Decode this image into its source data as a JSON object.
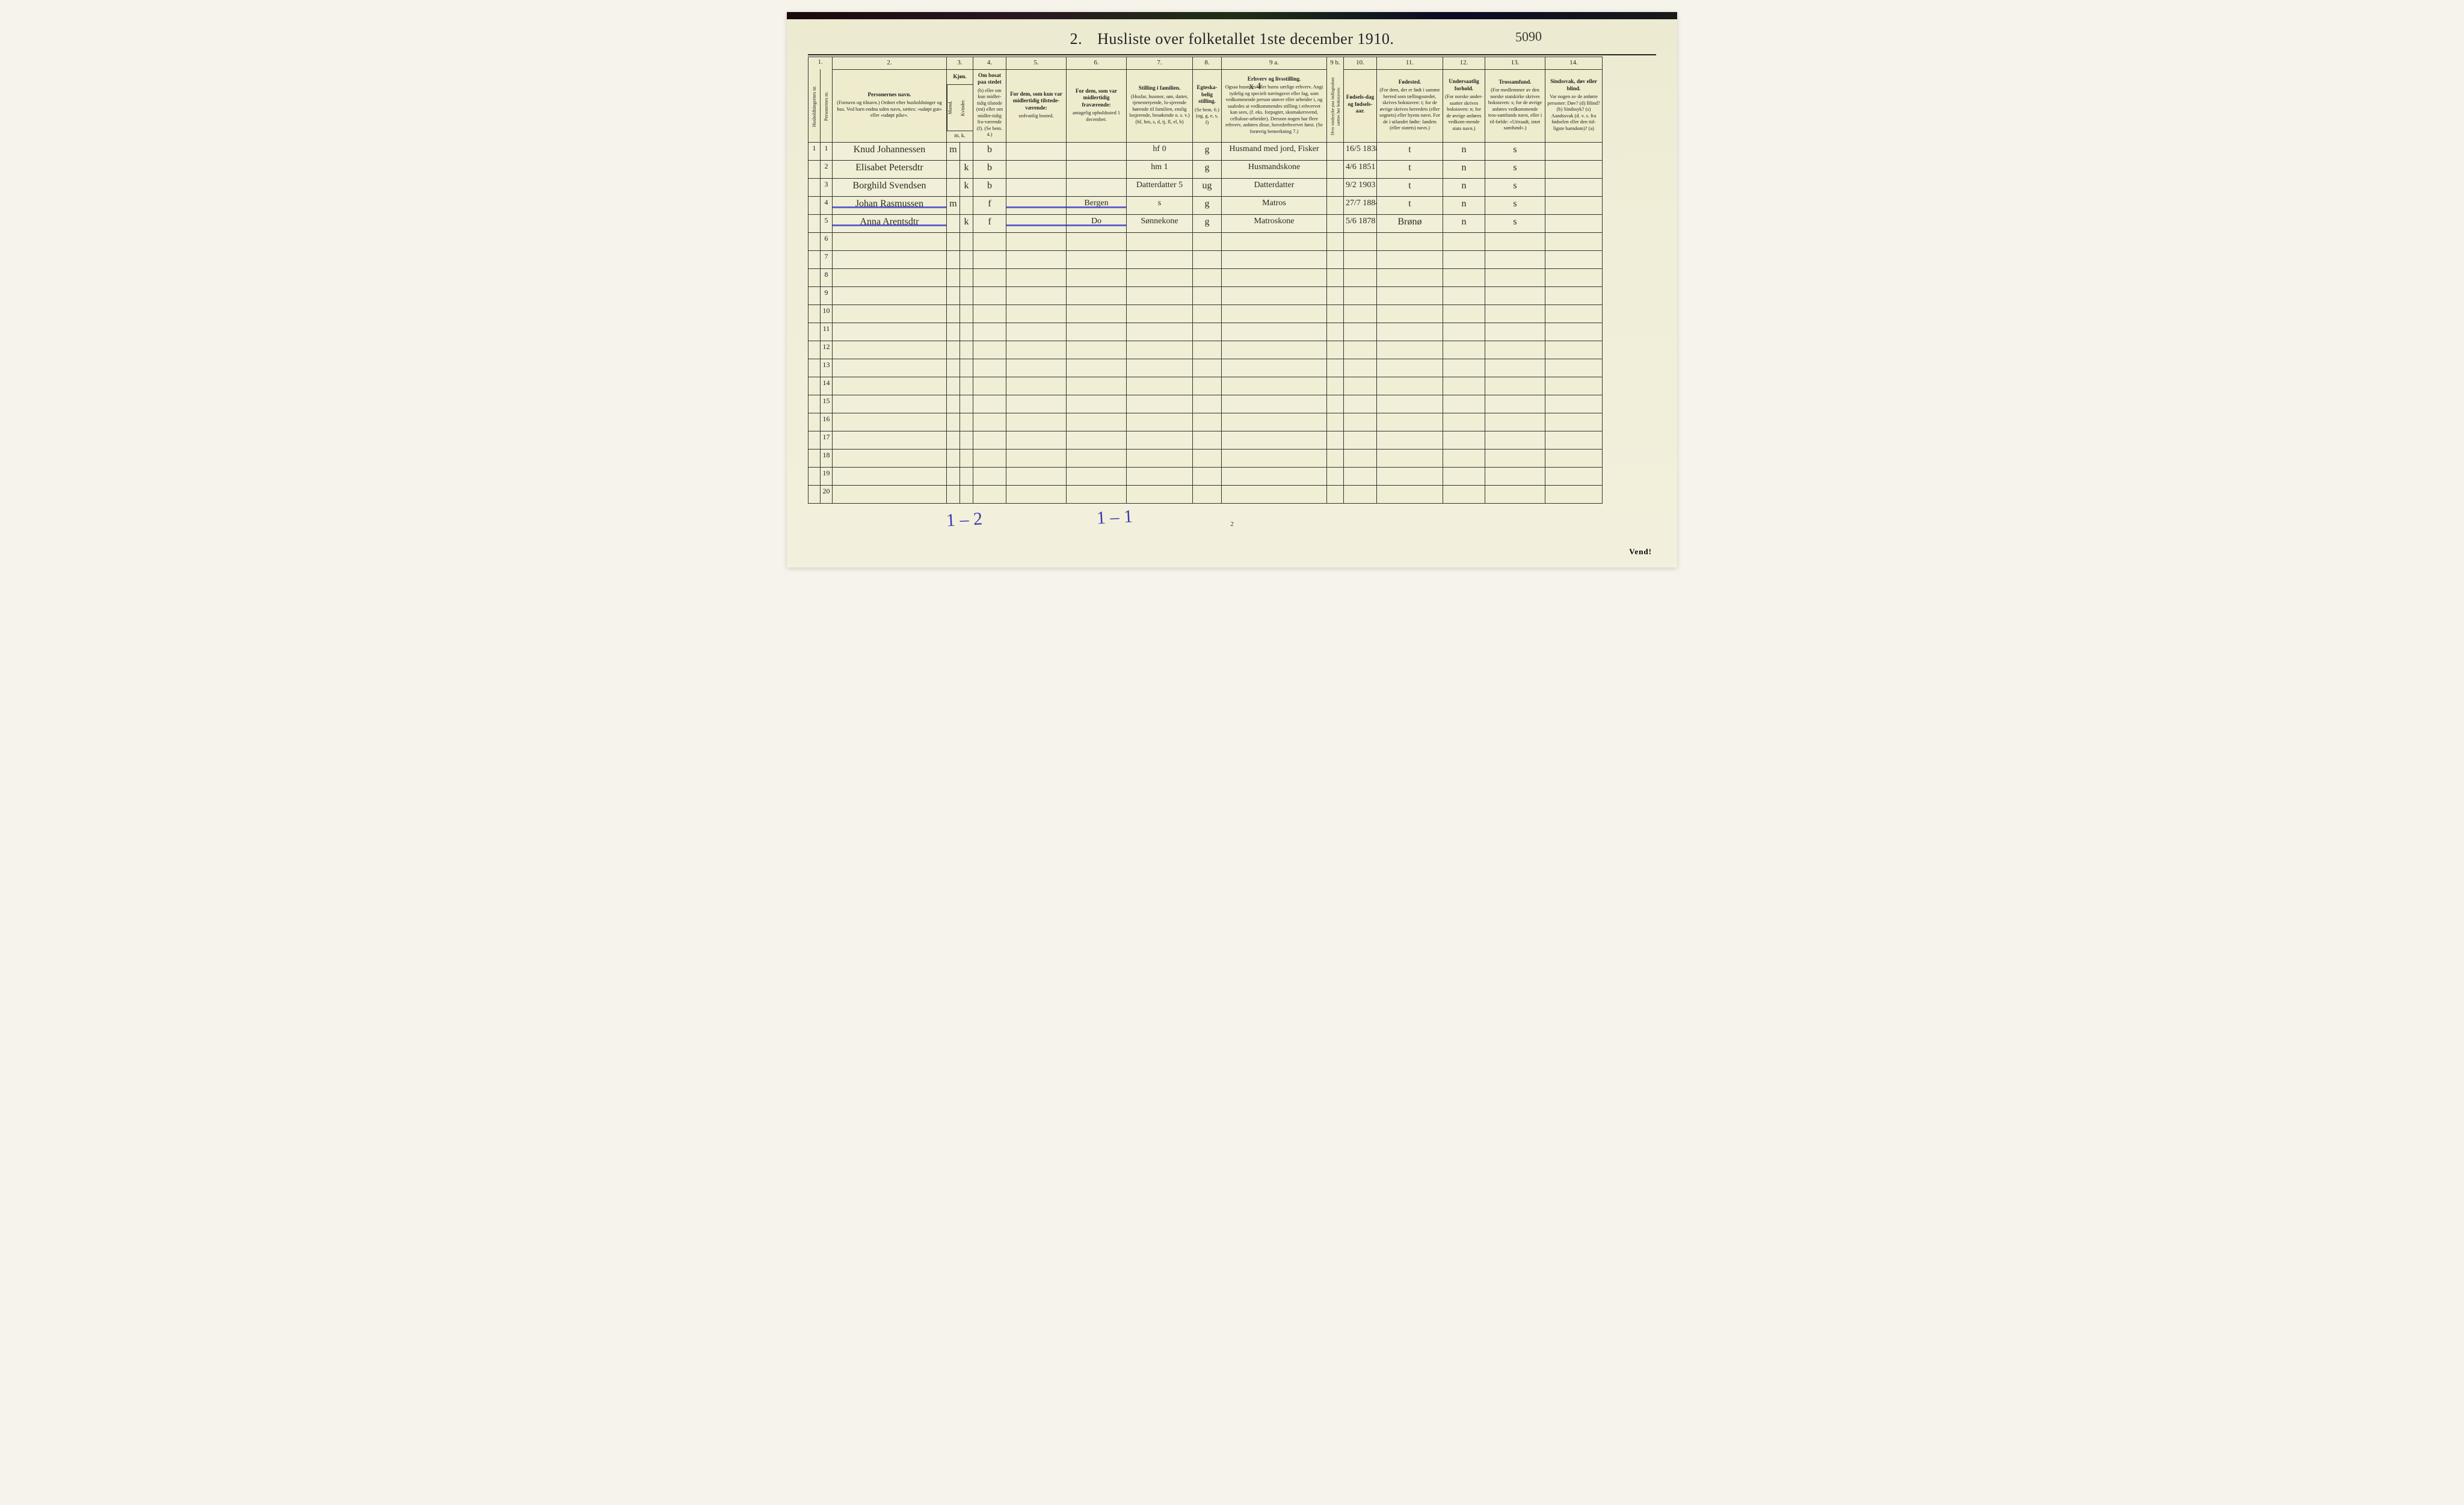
{
  "title_prefix": "2.",
  "title": "Husliste over folketallet 1ste december 1910.",
  "top_handwritten": "5090",
  "col_numbers": [
    "1.",
    "2.",
    "3.",
    "4.",
    "5.",
    "6.",
    "7.",
    "8.",
    "9 a.",
    "9 b.",
    "10.",
    "11.",
    "12.",
    "13.",
    "14."
  ],
  "headers": {
    "c1a": "Husholdningernes nr.",
    "c1b": "Personernes nr.",
    "c2_main": "Personernes navn.",
    "c2_sub": "(Fornavn og tilnavn.) Ordnet efter husholdninger og hus. Ved barn endnu uden navn, sættes: «udøpt gut» eller «udøpt pike».",
    "c3_main": "Kjøn.",
    "c3_sub_m": "Mænd.",
    "c3_sub_k": "Kvinder.",
    "c3_bot": "m.  k.",
    "c4_main": "Om bosat paa stedet",
    "c4_sub": "(b) eller om kun midler-tidig tilstede (mt) eller om midler-tidig fra-værende (f). (Se bem. 4.)",
    "c5_main": "For dem, som kun var midlertidig tilstede-værende:",
    "c5_sub": "sedvanlig bosted.",
    "c6_main": "For dem, som var midlertidig fraværende:",
    "c6_sub": "antagelig opholdssted 1 december.",
    "c7_main": "Stilling i familien.",
    "c7_sub": "(Husfar, husmor, søn, datter, tjenestetyende, lo-sjerende hørende til familien, enslig losjerende, besøkende o. s. v.) (hf, hm, s, d, tj, fl, el, b)",
    "c8_main": "Egteska-belig stilling.",
    "c8_sub": "(Se bem. 6.) (ug, g, e, s, f)",
    "c9a_main": "Erhverv og livsstilling.",
    "c9a_sub": "Ogsaa husmors eller barns særlige erhverv. Angi tydelig og specielt næringsvei eller fag, som vedkommende person utøver eller arbeider i, og saaledes at vedkommendes stilling i erhvervet kan sees, (f. eks. forpagter, skomakersvend, cellulose-arbeider). Dersom nogen har flere erhverv, anføres disse, hovederhvervet først. (Se forøvrig bemerkning 7.)",
    "c9b_main": "Hvis sindssyke paa indlagtsdom sættes her bokstaven:",
    "c10_main": "Fødsels-dag og fødsels-aar.",
    "c11_main": "Fødested.",
    "c11_sub": "(For dem, der er født i samme herred som tællingsstedet, skrives bokstaven: t; for de øvrige skrives herredets (eller sognets) eller byens navn. For de i utlandet fødte: landets (eller statets) navn.)",
    "c12_main": "Undersaatlig forhold.",
    "c12_sub": "(For norske under-saatter skrives bokstaven: n; for de øvrige anføres vedkom-mende stats navn.)",
    "c13_main": "Trossamfund.",
    "c13_sub": "(For medlemmer av den norske statskirke skrives bokstaven: s; for de øvrige anføres vedkommende tros-samfunds navn, eller i til-fælde: «Uttraadt, intet samfund».)",
    "c14_main": "Sindssvak, døv eller blind.",
    "c14_sub": "Var nogen av de anførte personer: Døv? (d) Blind? (b) Sindssyk? (s) Aandssvak (d. v. s. fra fødselen eller den tid-ligste barndom)? (a)"
  },
  "header_x4_note": "x 4",
  "rows": [
    {
      "h": "1",
      "p": "1",
      "name": "Knud Johannessen",
      "sexM": "m",
      "sexK": "",
      "c4": "b",
      "c5": "",
      "c6": "",
      "c7": "hf       0",
      "c8": "g",
      "c9a": "Husmand med jord, Fisker",
      "c9b": "",
      "c10": "16/5 1838",
      "c11": "t",
      "c12": "n",
      "c13": "s",
      "c14": "",
      "struck": false
    },
    {
      "h": "",
      "p": "2",
      "name": "Elisabet Petersdtr",
      "sexM": "",
      "sexK": "k",
      "c4": "b",
      "c5": "",
      "c6": "",
      "c7": "hm     1",
      "c8": "g",
      "c9a": "Husmandskone",
      "c9b": "",
      "c10": "4/6 1851",
      "c11": "t",
      "c12": "n",
      "c13": "s",
      "c14": "",
      "struck": false
    },
    {
      "h": "",
      "p": "3",
      "name": "Borghild Svendsen",
      "sexM": "",
      "sexK": "k",
      "c4": "b",
      "c5": "",
      "c6": "",
      "c7": "Datterdatter 5",
      "c8": "ug",
      "c9a": "Datterdatter",
      "c9b": "",
      "c10": "9/2 1903",
      "c11": "t",
      "c12": "n",
      "c13": "s",
      "c14": "",
      "struck": false
    },
    {
      "h": "",
      "p": "4",
      "name": "Johan Rasmussen",
      "sexM": "m",
      "sexK": "",
      "c4": "f",
      "c5": "",
      "c6": "Bergen",
      "c7": "s",
      "c8": "g",
      "c9a": "Matros",
      "c9b": "",
      "c10": "27/7 1884",
      "c11": "t",
      "c12": "n",
      "c13": "s",
      "c14": "",
      "struck": true
    },
    {
      "h": "",
      "p": "5",
      "name": "Anna Arentsdtr",
      "sexM": "",
      "sexK": "k",
      "c4": "f",
      "c5": "",
      "c6": "Do",
      "c7": "Sønnekone",
      "c8": "g",
      "c9a": "Matroskone",
      "c9b": "",
      "c10": "5/6 1878",
      "c11": "Brønø",
      "c12": "n",
      "c13": "s",
      "c14": "",
      "struck": true
    },
    {
      "h": "",
      "p": "6"
    },
    {
      "h": "",
      "p": "7"
    },
    {
      "h": "",
      "p": "8"
    },
    {
      "h": "",
      "p": "9"
    },
    {
      "h": "",
      "p": "10"
    },
    {
      "h": "",
      "p": "11"
    },
    {
      "h": "",
      "p": "12"
    },
    {
      "h": "",
      "p": "13"
    },
    {
      "h": "",
      "p": "14"
    },
    {
      "h": "",
      "p": "15"
    },
    {
      "h": "",
      "p": "16"
    },
    {
      "h": "",
      "p": "17"
    },
    {
      "h": "",
      "p": "18"
    },
    {
      "h": "",
      "p": "19"
    },
    {
      "h": "",
      "p": "20"
    }
  ],
  "bottom_note_1": "1 – 2",
  "bottom_note_2": "1 – 1",
  "page_small": "2",
  "vend": "Vend!"
}
